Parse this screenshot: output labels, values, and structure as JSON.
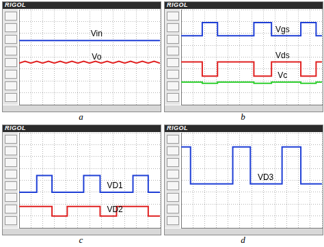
{
  "chart_data": [
    {
      "type": "line",
      "title": "a",
      "subtitle": "RIGOL",
      "grid": true,
      "tick_labels": false,
      "xlim": [
        0,
        12
      ],
      "xticks": [
        0,
        1,
        2,
        3,
        4,
        5,
        6,
        7,
        8,
        9,
        10,
        11,
        12
      ],
      "ylim": [
        -4,
        4
      ],
      "yticks": [
        -4,
        -3,
        -2,
        -1,
        0,
        1,
        2,
        3,
        4
      ],
      "x": [
        0,
        0.5,
        1,
        1.5,
        2,
        2.5,
        3,
        3.5,
        4,
        4.5,
        5,
        5.5,
        6,
        6.5,
        7,
        7.5,
        8,
        8.5,
        9,
        9.5,
        10,
        10.5,
        11,
        11.5,
        12
      ],
      "series": [
        {
          "name": "Vin",
          "color": "#1f3fd6",
          "values": [
            1.4,
            1.4,
            1.4,
            1.4,
            1.4,
            1.4,
            1.4,
            1.4,
            1.4,
            1.4,
            1.4,
            1.4,
            1.4,
            1.4,
            1.4,
            1.4,
            1.4,
            1.4,
            1.4,
            1.4,
            1.4,
            1.4,
            1.4,
            1.4,
            1.4
          ]
        },
        {
          "name": "Vo",
          "color": "#e02020",
          "values": [
            -0.5,
            -0.35,
            -0.5,
            -0.35,
            -0.5,
            -0.35,
            -0.5,
            -0.35,
            -0.5,
            -0.35,
            -0.5,
            -0.35,
            -0.5,
            -0.35,
            -0.5,
            -0.35,
            -0.5,
            -0.35,
            -0.5,
            -0.35,
            -0.5,
            -0.35,
            -0.5,
            -0.35,
            -0.5
          ]
        }
      ]
    },
    {
      "type": "line",
      "title": "b",
      "subtitle": "RIGOL",
      "grid": true,
      "tick_labels": false,
      "xlim": [
        0,
        12
      ],
      "xticks": [
        0,
        1,
        2,
        3,
        4,
        5,
        6,
        7,
        8,
        9,
        10,
        11,
        12
      ],
      "ylim": [
        -4,
        4
      ],
      "yticks": [
        -4,
        -3,
        -2,
        -1,
        0,
        1,
        2,
        3,
        4
      ],
      "x": [
        0,
        1.8,
        1.8,
        3.1,
        3.1,
        6.2,
        6.2,
        7.7,
        7.7,
        10.2,
        10.2,
        11.5,
        11.5,
        12
      ],
      "series": [
        {
          "name": "Vgs",
          "color": "#1f3fd6",
          "values": [
            1.8,
            1.8,
            2.9,
            2.9,
            1.8,
            1.8,
            2.9,
            2.9,
            1.8,
            1.8,
            2.9,
            2.9,
            1.8,
            1.8
          ]
        },
        {
          "name": "Vds",
          "color": "#e02020",
          "values": [
            -0.4,
            -0.4,
            -1.6,
            -1.6,
            -0.4,
            -0.4,
            -1.6,
            -1.6,
            -0.4,
            -0.4,
            -1.6,
            -1.6,
            -0.4,
            -0.4
          ]
        },
        {
          "name": "Vc",
          "color": "#2fcf2f",
          "values": [
            -2.1,
            -2.1,
            -2.2,
            -2.2,
            -2.1,
            -2.1,
            -2.2,
            -2.2,
            -2.1,
            -2.1,
            -2.2,
            -2.2,
            -2.1,
            -2.1
          ]
        }
      ]
    },
    {
      "type": "line",
      "title": "c",
      "subtitle": "RIGOL",
      "grid": true,
      "tick_labels": false,
      "xlim": [
        0,
        12
      ],
      "xticks": [
        0,
        1,
        2,
        3,
        4,
        5,
        6,
        7,
        8,
        9,
        10,
        11,
        12
      ],
      "ylim": [
        -4,
        4
      ],
      "yticks": [
        -4,
        -3,
        -2,
        -1,
        0,
        1,
        2,
        3,
        4
      ],
      "x": [
        0,
        1.5,
        1.5,
        2.8,
        2.8,
        4.1,
        4.1,
        5.5,
        5.5,
        6.9,
        6.9,
        8.3,
        8.3,
        9.7,
        9.7,
        11.0,
        11.0,
        12
      ],
      "series": [
        {
          "name": "VD1",
          "color": "#1f3fd6",
          "values": [
            -1,
            -1,
            0.4,
            0.4,
            -1,
            -1,
            -1,
            -1,
            0.4,
            0.4,
            -1,
            -1,
            -1,
            -1,
            0.4,
            0.4,
            -1,
            -1
          ]
        },
        {
          "name": "VD2",
          "color": "#e02020",
          "values": [
            -2.2,
            -2.2,
            -2.2,
            -2.2,
            -3.0,
            -3.0,
            -2.2,
            -2.2,
            -2.2,
            -2.2,
            -3.0,
            -3.0,
            -2.2,
            -2.2,
            -2.2,
            -2.2,
            -3.0,
            -3.0
          ]
        }
      ]
    },
    {
      "type": "line",
      "title": "d",
      "subtitle": "RIGOL",
      "grid": true,
      "tick_labels": false,
      "xlim": [
        0,
        12
      ],
      "xticks": [
        0,
        1,
        2,
        3,
        4,
        5,
        6,
        7,
        8,
        9,
        10,
        11,
        12
      ],
      "ylim": [
        -4,
        4
      ],
      "yticks": [
        -4,
        -3,
        -2,
        -1,
        0,
        1,
        2,
        3,
        4
      ],
      "x": [
        0,
        0.8,
        0.8,
        4.4,
        4.4,
        5.9,
        5.9,
        8.6,
        8.6,
        10.2,
        10.2,
        12
      ],
      "series": [
        {
          "name": "VD3",
          "color": "#1f3fd6",
          "values": [
            2.8,
            2.8,
            -0.3,
            -0.3,
            2.8,
            2.8,
            -0.3,
            -0.3,
            2.8,
            2.8,
            -0.3,
            -0.3
          ]
        }
      ]
    }
  ]
}
